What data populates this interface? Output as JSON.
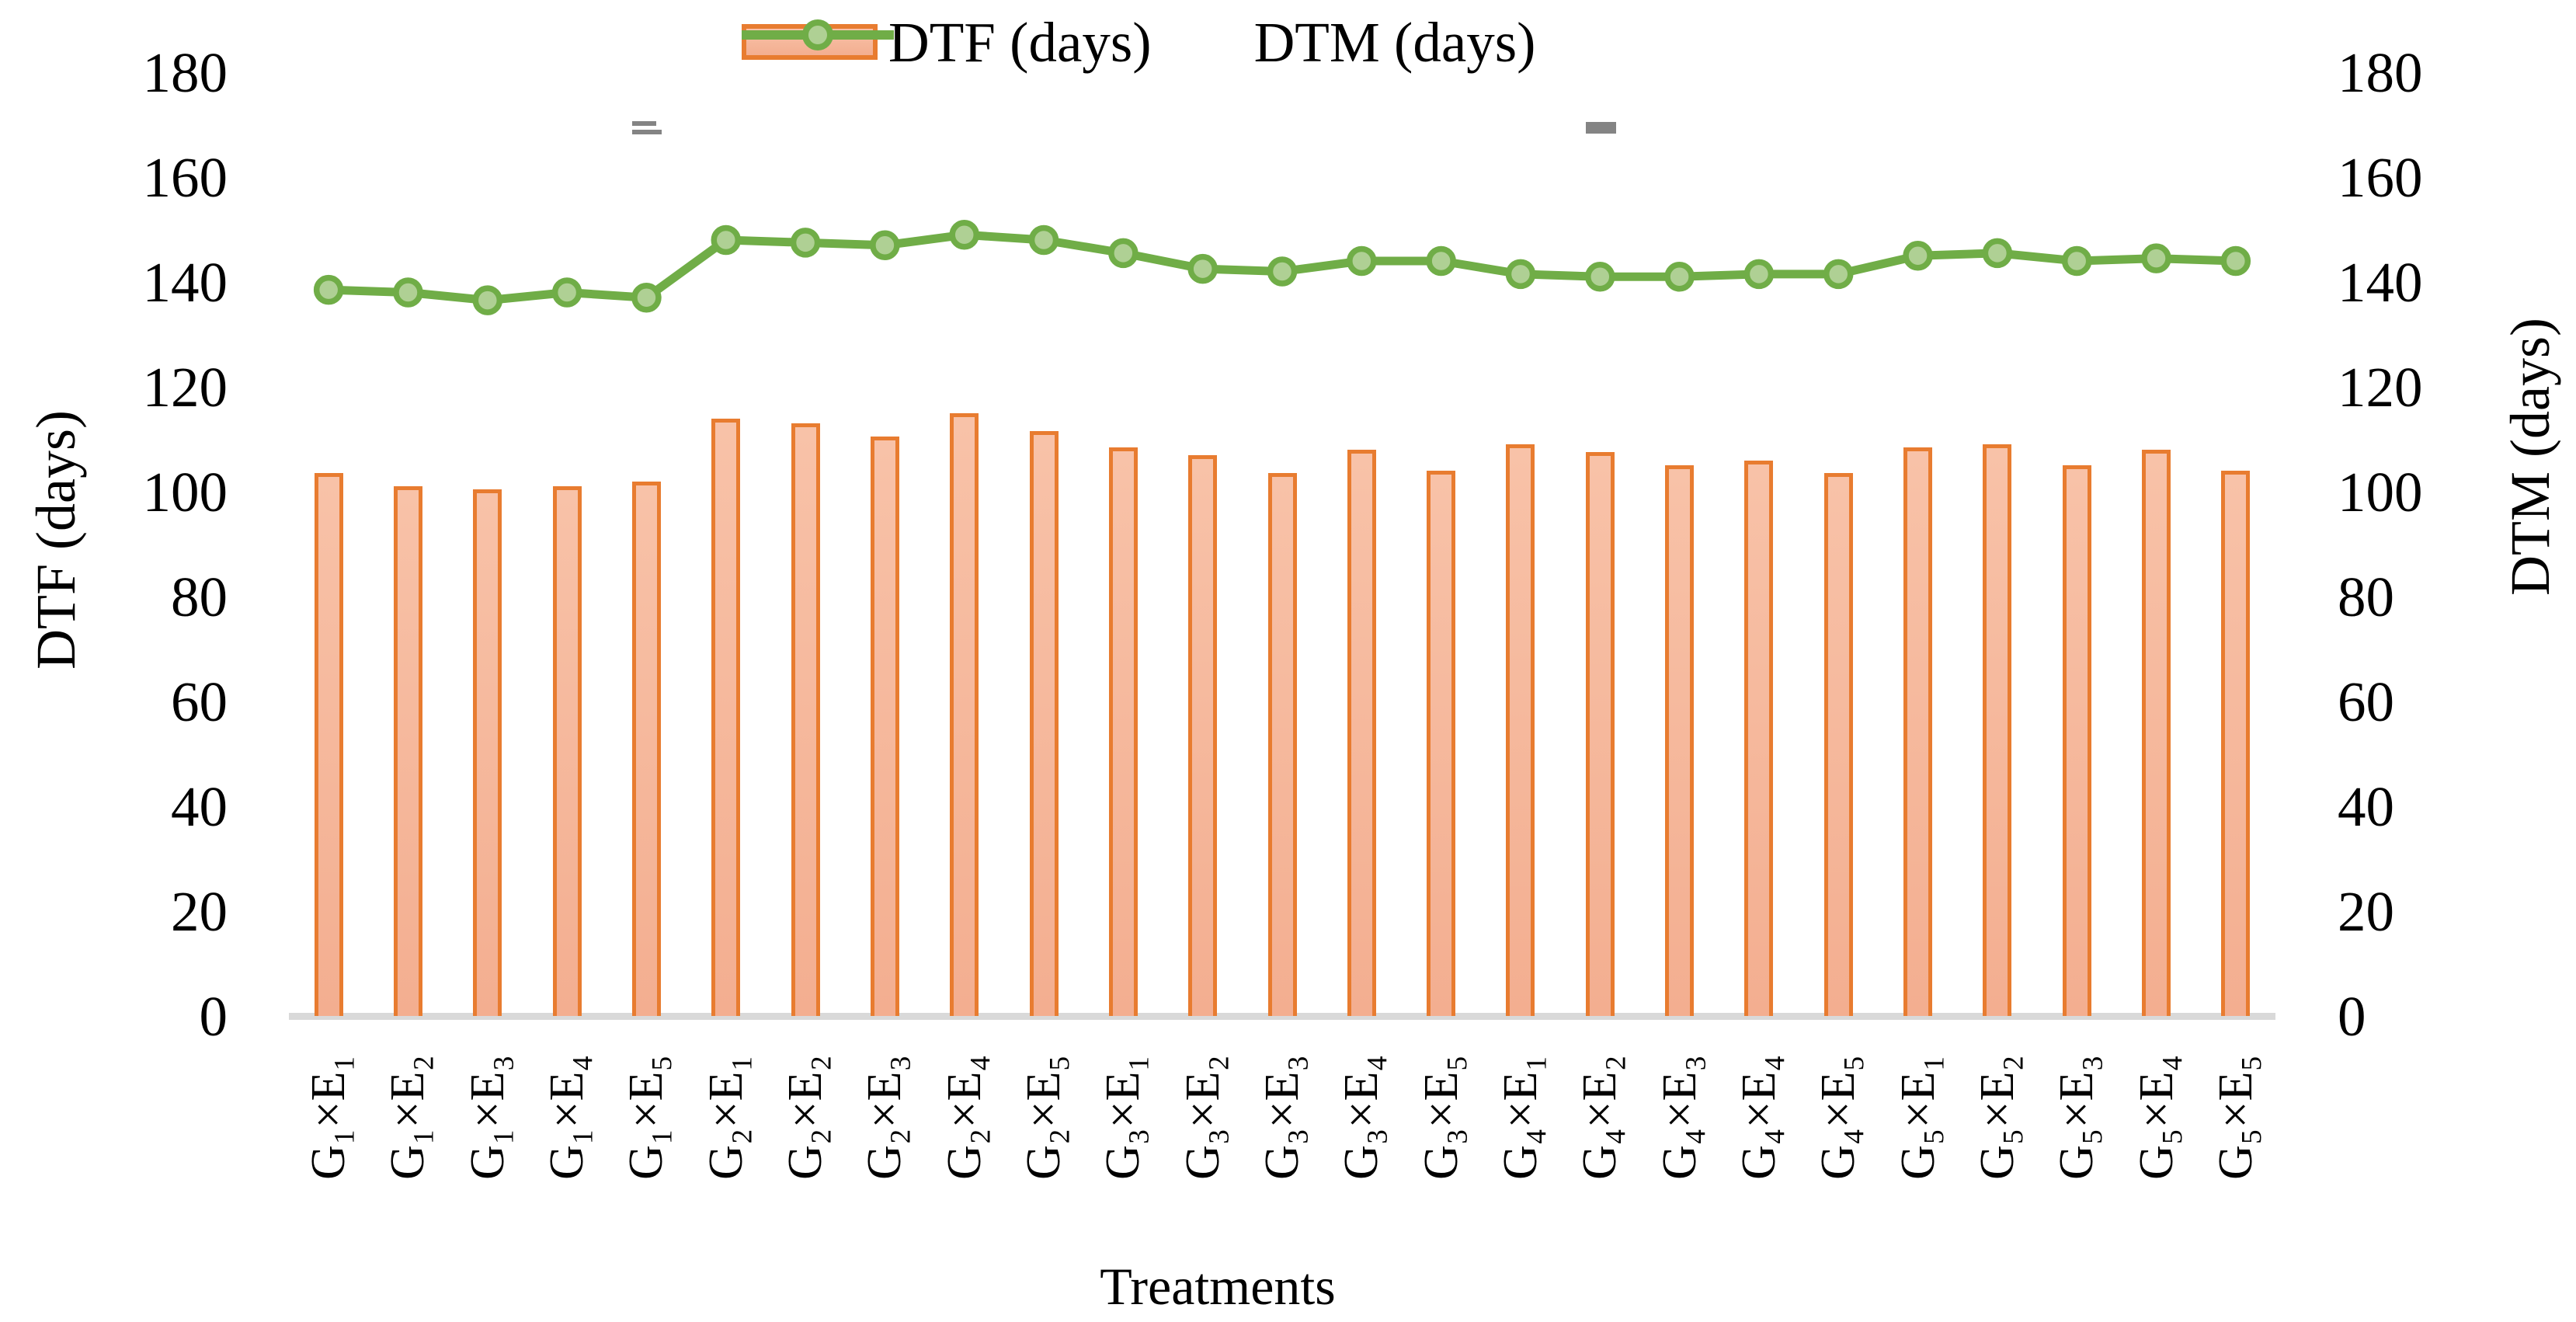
{
  "chart_data": {
    "type": "bar+line combo",
    "title": "",
    "xlabel": "Treatments",
    "ylabel_left": "DTF (days)",
    "ylabel_right": "DTM (days)",
    "ylim": [
      0,
      180
    ],
    "y_ticks": [
      0,
      20,
      40,
      60,
      80,
      100,
      120,
      140,
      160,
      180
    ],
    "gridlines": false,
    "legend_position": "top-center",
    "categories": [
      "G₁×E₁",
      "G₁×E₂",
      "G₁×E₃",
      "G₁×E₄",
      "G₁×E₅",
      "G₂×E₁",
      "G₂×E₂",
      "G₂×E₃",
      "G₂×E₄",
      "G₂×E₅",
      "G₃×E₁",
      "G₃×E₂",
      "G₃×E₃",
      "G₃×E₄",
      "G₃×E₅",
      "G₄×E₁",
      "G₄×E₂",
      "G₄×E₃",
      "G₄×E₄",
      "G₄×E₅",
      "G₅×E₁",
      "G₅×E₂",
      "G₅×E₃",
      "G₅×E₄",
      "G₅×E₅"
    ],
    "series": [
      {
        "name": "DTF (days)",
        "type": "bar",
        "axis": "left",
        "fill_color": "#F6BCA1",
        "border_color": "#E87C30",
        "values": [
          103.5,
          101,
          100.5,
          101,
          102,
          114,
          113,
          110.5,
          115,
          111.5,
          108.5,
          107,
          103.5,
          108,
          104,
          109,
          107.5,
          105,
          106,
          103.5,
          108.5,
          109,
          105,
          108,
          104
        ]
      },
      {
        "name": "DTM (days)",
        "type": "line",
        "axis": "right",
        "line_color": "#70AD47",
        "marker_fill": "#AFD094",
        "marker_border": "#70AD47",
        "values": [
          138.5,
          138,
          136.5,
          138,
          137,
          148,
          147.5,
          147,
          149,
          148,
          145.5,
          142.5,
          142,
          144,
          144,
          141.5,
          141,
          141,
          141.5,
          141.5,
          145,
          145.5,
          144,
          144.5,
          144
        ]
      }
    ],
    "axis_line_color": "#D9D9D9",
    "artifacts": [
      {
        "x": 814,
        "y": 156,
        "segments": [
          {
            "dx": 0,
            "dy": 0,
            "w": 31,
            "h": 6
          },
          {
            "dx": 0,
            "dy": 11,
            "w": 38,
            "h": 6
          }
        ]
      },
      {
        "x": 2042,
        "y": 157,
        "segments": [
          {
            "dx": 0,
            "dy": 0,
            "w": 39,
            "h": 15
          }
        ]
      }
    ]
  },
  "legend": {
    "dtf_label": "DTF (days)",
    "dtm_label": "DTM (days)"
  },
  "titles": {
    "x_axis": "Treatments",
    "y_axis_left": "DTF (days)",
    "y_axis_right": "DTM (days)"
  }
}
